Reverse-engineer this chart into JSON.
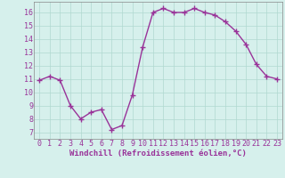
{
  "x": [
    0,
    1,
    2,
    3,
    4,
    5,
    6,
    7,
    8,
    9,
    10,
    11,
    12,
    13,
    14,
    15,
    16,
    17,
    18,
    19,
    20,
    21,
    22,
    23
  ],
  "y": [
    10.9,
    11.2,
    10.9,
    9.0,
    8.0,
    8.5,
    8.7,
    7.2,
    7.5,
    9.8,
    13.4,
    16.0,
    16.3,
    16.0,
    16.0,
    16.3,
    16.0,
    15.8,
    15.3,
    14.6,
    13.6,
    12.1,
    11.2,
    11.0
  ],
  "line_color": "#993399",
  "marker": "+",
  "marker_size": 4,
  "marker_lw": 1.0,
  "xlabel": "Windchill (Refroidissement éolien,°C)",
  "xlabel_fontsize": 6.5,
  "ylim": [
    6.5,
    16.8
  ],
  "xlim": [
    -0.5,
    23.5
  ],
  "yticks": [
    7,
    8,
    9,
    10,
    11,
    12,
    13,
    14,
    15,
    16
  ],
  "xticks": [
    0,
    1,
    2,
    3,
    4,
    5,
    6,
    7,
    8,
    9,
    10,
    11,
    12,
    13,
    14,
    15,
    16,
    17,
    18,
    19,
    20,
    21,
    22,
    23
  ],
  "grid_color": "#b0d8d0",
  "bg_color": "#d6f0ec",
  "tick_color": "#993399",
  "tick_fontsize": 6.0,
  "line_width": 1.0,
  "spine_color": "#888888"
}
